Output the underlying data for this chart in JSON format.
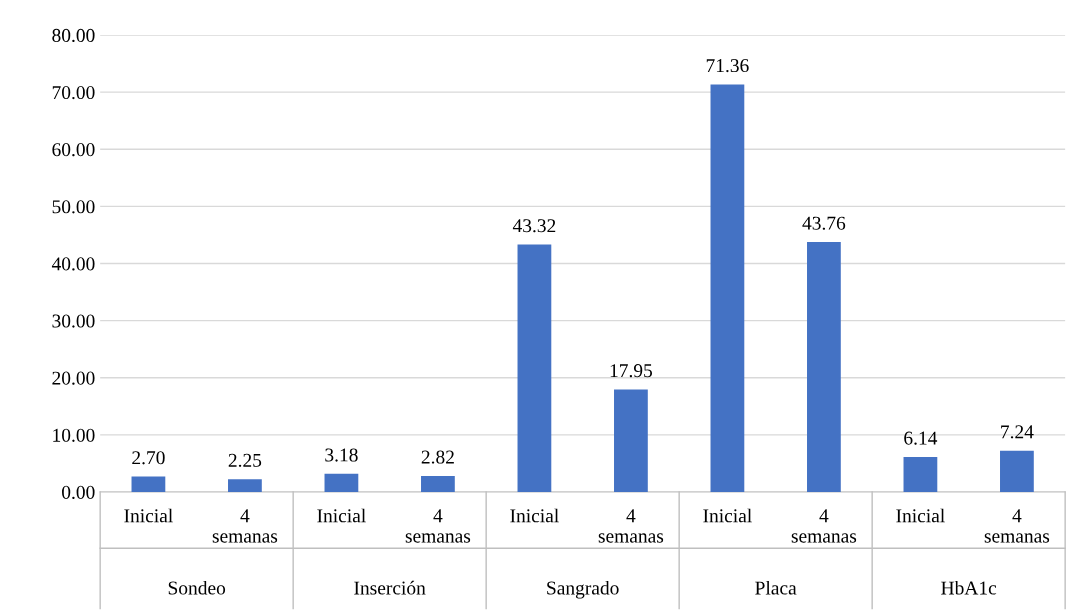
{
  "chart_data": {
    "type": "bar",
    "categories": [
      "Inicial",
      "4 semanas",
      "Inicial",
      "4 semanas",
      "Inicial",
      "4 semanas",
      "Inicial",
      "4 semanas",
      "Inicial",
      "4 semanas"
    ],
    "values": [
      2.7,
      2.25,
      3.18,
      2.82,
      43.32,
      17.95,
      71.36,
      43.76,
      6.14,
      7.24
    ],
    "color": "#4472c4",
    "value_labels": [
      "2.70",
      "2.25",
      "3.18",
      "2.82",
      "43.32",
      "17.95",
      "71.36",
      "43.76",
      "6.14",
      "7.24"
    ],
    "annotations": [
      "Sondeo",
      "Inserción",
      "Sangrado",
      "Placa",
      "HbA1c"
    ],
    "ylim": [
      0,
      80
    ],
    "yticks": [
      {
        "value": 0,
        "label": "0.00"
      },
      {
        "value": 10,
        "label": "10.00"
      },
      {
        "value": 20,
        "label": "20.00"
      },
      {
        "value": 30,
        "label": "30.00"
      },
      {
        "value": 40,
        "label": "40.00"
      },
      {
        "value": 50,
        "label": "50.00"
      },
      {
        "value": 60,
        "label": "60.00"
      },
      {
        "value": 70,
        "label": "70.00"
      },
      {
        "value": 80,
        "label": "80.00"
      }
    ],
    "grid": "y",
    "legend": false
  }
}
